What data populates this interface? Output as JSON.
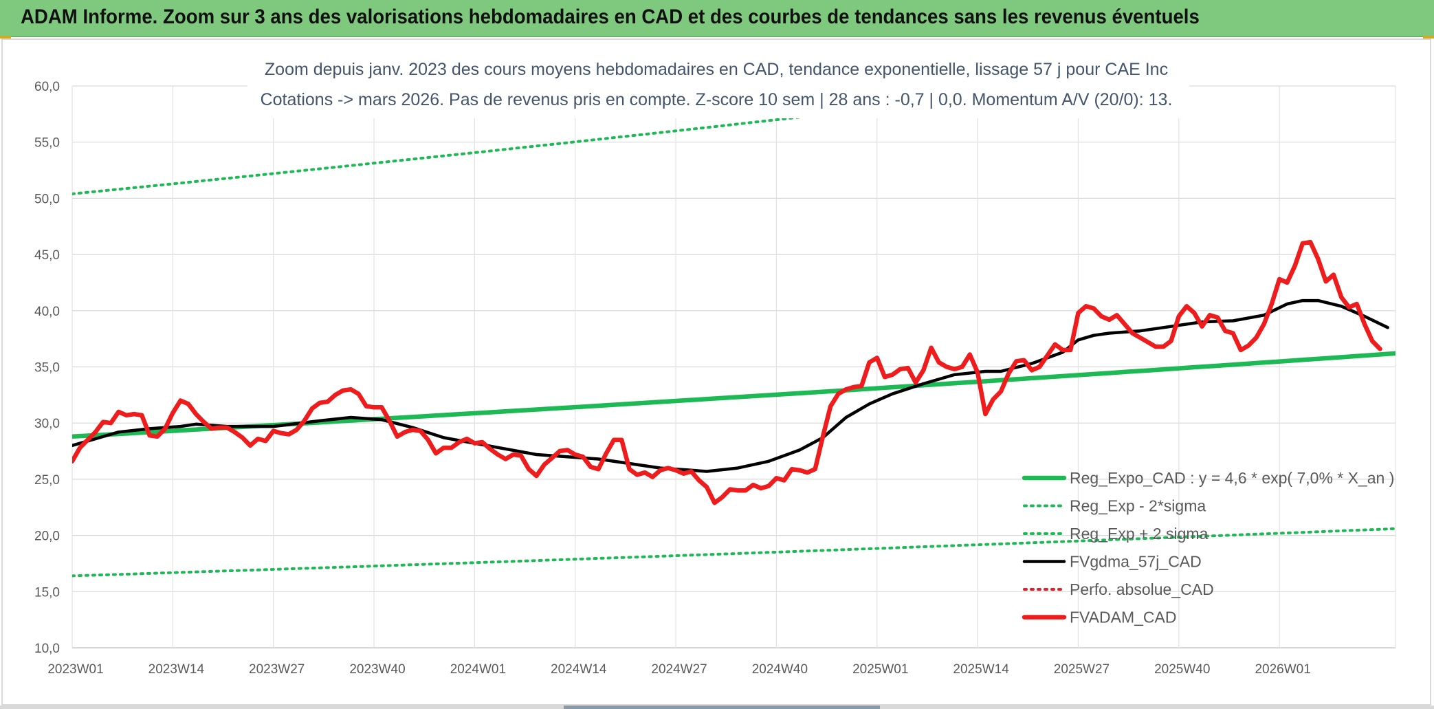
{
  "header": {
    "title": "ADAM Informe. Zoom sur 3 ans des valorisations hebdomadaires en CAD et des courbes de tendances sans les revenus éventuels"
  },
  "chart_data": {
    "type": "line",
    "title_line1": "Zoom depuis janv. 2023 des cours moyens hebdomadaires en CAD, tendance exponentielle, lissage 57 j pour CAE Inc",
    "title_line2": "Cotations -> mars 2026. Pas de revenus pris en compte. Z-score 10 sem | 28 ans : -0,7 | 0,0. Momentum A/V (20/0): 13.",
    "ylim": [
      10,
      60
    ],
    "y_ticks": [
      "10,0",
      "15,0",
      "20,0",
      "25,0",
      "30,0",
      "35,0",
      "40,0",
      "45,0",
      "50,0",
      "55,0",
      "60,0"
    ],
    "x_ticks": [
      {
        "label": "2023W01",
        "week": 0
      },
      {
        "label": "2023W14",
        "week": 13
      },
      {
        "label": "2023W27",
        "week": 26
      },
      {
        "label": "2023W40",
        "week": 39
      },
      {
        "label": "2024W01",
        "week": 52
      },
      {
        "label": "2024W14",
        "week": 65
      },
      {
        "label": "2024W27",
        "week": 78
      },
      {
        "label": "2024W40",
        "week": 91
      },
      {
        "label": "2025W01",
        "week": 104
      },
      {
        "label": "2025W14",
        "week": 117
      },
      {
        "label": "2025W27",
        "week": 130
      },
      {
        "label": "2025W40",
        "week": 143
      },
      {
        "label": "2026W01",
        "week": 156
      }
    ],
    "x_max_week": 171,
    "grid": true,
    "legend_position": "bottom-right",
    "series": [
      {
        "name": "Reg_Expo_CAD : y = 4,6 * exp( 7,0% *  X_an )",
        "color": "#1db954",
        "style": "thick",
        "start": 28.8,
        "end": 36.2
      },
      {
        "name": "Reg_Exp - 2*sigma",
        "color": "#1db954",
        "style": "dotted",
        "start": 16.4,
        "end": 20.6
      },
      {
        "name": "Reg_Exp + 2 sigma",
        "color": "#1db954",
        "style": "dotted",
        "start": 50.4,
        "end": 63.5
      },
      {
        "name": "FVgdma_57j_CAD",
        "color": "#000000",
        "style": "solid",
        "points": [
          [
            0,
            28.0
          ],
          [
            3,
            28.6
          ],
          [
            6,
            29.2
          ],
          [
            10,
            29.5
          ],
          [
            14,
            29.7
          ],
          [
            16,
            29.9
          ],
          [
            20,
            29.7
          ],
          [
            26,
            29.7
          ],
          [
            32,
            30.2
          ],
          [
            36,
            30.5
          ],
          [
            40,
            30.3
          ],
          [
            44,
            29.6
          ],
          [
            48,
            28.7
          ],
          [
            52,
            28.2
          ],
          [
            56,
            27.7
          ],
          [
            60,
            27.2
          ],
          [
            64,
            27.0
          ],
          [
            68,
            26.8
          ],
          [
            72,
            26.4
          ],
          [
            76,
            26.0
          ],
          [
            80,
            25.8
          ],
          [
            82,
            25.7
          ],
          [
            86,
            26.0
          ],
          [
            90,
            26.6
          ],
          [
            94,
            27.6
          ],
          [
            97,
            28.7
          ],
          [
            100,
            30.5
          ],
          [
            103,
            31.7
          ],
          [
            106,
            32.6
          ],
          [
            110,
            33.5
          ],
          [
            114,
            34.3
          ],
          [
            118,
            34.6
          ],
          [
            120,
            34.6
          ],
          [
            124,
            35.3
          ],
          [
            128,
            36.3
          ],
          [
            130,
            37.4
          ],
          [
            132,
            37.8
          ],
          [
            134,
            38.0
          ],
          [
            138,
            38.2
          ],
          [
            142,
            38.6
          ],
          [
            146,
            39.0
          ],
          [
            150,
            39.1
          ],
          [
            154,
            39.6
          ],
          [
            157,
            40.6
          ],
          [
            159,
            40.9
          ],
          [
            161,
            40.9
          ],
          [
            164,
            40.4
          ],
          [
            167,
            39.5
          ],
          [
            170,
            38.5
          ]
        ]
      },
      {
        "name": "Perfo. absolue_CAD",
        "color": "#e0202a",
        "style": "dotted",
        "points": []
      },
      {
        "name": "FVADAM_CAD",
        "color": "#ee1c1c",
        "style": "thick",
        "points": [
          [
            0,
            26.6
          ],
          [
            1,
            27.8
          ],
          [
            2,
            28.5
          ],
          [
            3,
            29.2
          ],
          [
            4,
            30.1
          ],
          [
            5,
            30.0
          ],
          [
            6,
            31.0
          ],
          [
            7,
            30.7
          ],
          [
            8,
            30.8
          ],
          [
            9,
            30.7
          ],
          [
            10,
            28.9
          ],
          [
            11,
            28.8
          ],
          [
            12,
            29.5
          ],
          [
            13,
            30.9
          ],
          [
            14,
            32.0
          ],
          [
            15,
            31.7
          ],
          [
            16,
            30.8
          ],
          [
            17,
            30.1
          ],
          [
            18,
            29.5
          ],
          [
            19,
            29.6
          ],
          [
            20,
            29.6
          ],
          [
            21,
            29.2
          ],
          [
            22,
            28.7
          ],
          [
            23,
            28.0
          ],
          [
            24,
            28.6
          ],
          [
            25,
            28.4
          ],
          [
            26,
            29.3
          ],
          [
            27,
            29.1
          ],
          [
            28,
            29.0
          ],
          [
            29,
            29.4
          ],
          [
            30,
            30.2
          ],
          [
            31,
            31.3
          ],
          [
            32,
            31.8
          ],
          [
            33,
            31.9
          ],
          [
            34,
            32.5
          ],
          [
            35,
            32.9
          ],
          [
            36,
            33.0
          ],
          [
            37,
            32.6
          ],
          [
            38,
            31.5
          ],
          [
            39,
            31.4
          ],
          [
            40,
            31.4
          ],
          [
            41,
            30.2
          ],
          [
            42,
            28.8
          ],
          [
            43,
            29.2
          ],
          [
            44,
            29.4
          ],
          [
            45,
            29.3
          ],
          [
            46,
            28.5
          ],
          [
            47,
            27.3
          ],
          [
            48,
            27.8
          ],
          [
            49,
            27.8
          ],
          [
            50,
            28.3
          ],
          [
            51,
            28.6
          ],
          [
            52,
            28.2
          ],
          [
            53,
            28.3
          ],
          [
            54,
            27.7
          ],
          [
            55,
            27.2
          ],
          [
            56,
            26.8
          ],
          [
            57,
            27.2
          ],
          [
            58,
            27.1
          ],
          [
            59,
            25.9
          ],
          [
            60,
            25.3
          ],
          [
            61,
            26.3
          ],
          [
            62,
            26.9
          ],
          [
            63,
            27.5
          ],
          [
            64,
            27.6
          ],
          [
            65,
            27.2
          ],
          [
            66,
            27.0
          ],
          [
            67,
            26.1
          ],
          [
            68,
            25.9
          ],
          [
            69,
            27.3
          ],
          [
            70,
            28.5
          ],
          [
            71,
            28.5
          ],
          [
            72,
            25.9
          ],
          [
            73,
            25.4
          ],
          [
            74,
            25.6
          ],
          [
            75,
            25.2
          ],
          [
            76,
            25.8
          ],
          [
            77,
            26.0
          ],
          [
            78,
            25.8
          ],
          [
            79,
            25.5
          ],
          [
            80,
            25.7
          ],
          [
            81,
            24.9
          ],
          [
            82,
            24.3
          ],
          [
            83,
            22.9
          ],
          [
            84,
            23.4
          ],
          [
            85,
            24.1
          ],
          [
            86,
            24.0
          ],
          [
            87,
            24.0
          ],
          [
            88,
            24.5
          ],
          [
            89,
            24.2
          ],
          [
            90,
            24.4
          ],
          [
            91,
            25.1
          ],
          [
            92,
            24.9
          ],
          [
            93,
            25.9
          ],
          [
            94,
            25.8
          ],
          [
            95,
            25.6
          ],
          [
            96,
            25.9
          ],
          [
            97,
            28.8
          ],
          [
            98,
            31.5
          ],
          [
            99,
            32.6
          ],
          [
            100,
            33.0
          ],
          [
            101,
            33.2
          ],
          [
            102,
            33.3
          ],
          [
            103,
            35.4
          ],
          [
            104,
            35.8
          ],
          [
            105,
            34.1
          ],
          [
            106,
            34.3
          ],
          [
            107,
            34.8
          ],
          [
            108,
            34.9
          ],
          [
            109,
            33.6
          ],
          [
            110,
            34.7
          ],
          [
            111,
            36.7
          ],
          [
            112,
            35.4
          ],
          [
            113,
            35.0
          ],
          [
            114,
            34.8
          ],
          [
            115,
            35.0
          ],
          [
            116,
            36.1
          ],
          [
            117,
            34.5
          ],
          [
            118,
            30.8
          ],
          [
            119,
            32.1
          ],
          [
            120,
            32.8
          ],
          [
            121,
            34.4
          ],
          [
            122,
            35.5
          ],
          [
            123,
            35.6
          ],
          [
            124,
            34.7
          ],
          [
            125,
            35.0
          ],
          [
            126,
            36.0
          ],
          [
            127,
            37.0
          ],
          [
            128,
            36.5
          ],
          [
            129,
            36.5
          ],
          [
            130,
            39.8
          ],
          [
            131,
            40.4
          ],
          [
            132,
            40.2
          ],
          [
            133,
            39.5
          ],
          [
            134,
            39.2
          ],
          [
            135,
            39.6
          ],
          [
            136,
            38.8
          ],
          [
            137,
            38.0
          ],
          [
            138,
            37.6
          ],
          [
            139,
            37.2
          ],
          [
            140,
            36.8
          ],
          [
            141,
            36.8
          ],
          [
            142,
            37.3
          ],
          [
            143,
            39.5
          ],
          [
            144,
            40.4
          ],
          [
            145,
            39.8
          ],
          [
            146,
            38.6
          ],
          [
            147,
            39.6
          ],
          [
            148,
            39.4
          ],
          [
            149,
            38.2
          ],
          [
            150,
            38.0
          ],
          [
            151,
            36.5
          ],
          [
            152,
            36.9
          ],
          [
            153,
            37.6
          ],
          [
            154,
            38.8
          ],
          [
            155,
            40.6
          ],
          [
            156,
            42.8
          ],
          [
            157,
            42.5
          ],
          [
            158,
            44.0
          ],
          [
            159,
            46.0
          ],
          [
            160,
            46.1
          ],
          [
            161,
            44.6
          ],
          [
            162,
            42.6
          ],
          [
            163,
            43.2
          ],
          [
            164,
            41.2
          ],
          [
            165,
            40.3
          ],
          [
            166,
            40.6
          ],
          [
            167,
            38.8
          ],
          [
            168,
            37.3
          ],
          [
            169,
            36.6
          ]
        ]
      }
    ]
  }
}
